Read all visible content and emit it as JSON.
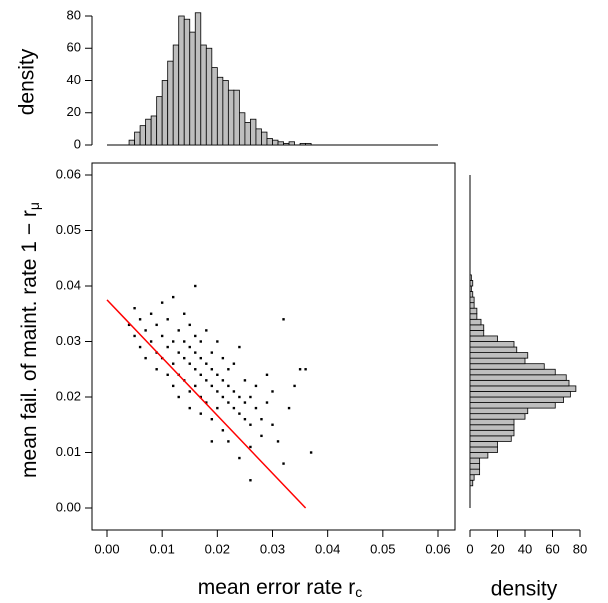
{
  "chart_data": [
    {
      "type": "scatter",
      "x_label": "mean error rate r",
      "x_label_sub": "c",
      "y_label": "mean fail. of maint. rate 1 − r",
      "y_label_sub": "μ",
      "xlim": [
        0,
        0.06
      ],
      "ylim": [
        0,
        0.06
      ],
      "xticks": [
        {
          "value": 0,
          "label": "0.00"
        },
        {
          "value": 0.01,
          "label": "0.01"
        },
        {
          "value": 0.02,
          "label": "0.02"
        },
        {
          "value": 0.03,
          "label": "0.03"
        },
        {
          "value": 0.04,
          "label": "0.04"
        },
        {
          "value": 0.05,
          "label": "0.05"
        },
        {
          "value": 0.06,
          "label": "0.06"
        }
      ],
      "yticks": [
        {
          "value": 0,
          "label": "0.00"
        },
        {
          "value": 0.01,
          "label": "0.01"
        },
        {
          "value": 0.02,
          "label": "0.02"
        },
        {
          "value": 0.03,
          "label": "0.03"
        },
        {
          "value": 0.04,
          "label": "0.04"
        },
        {
          "value": 0.05,
          "label": "0.05"
        },
        {
          "value": 0.06,
          "label": "0.06"
        }
      ],
      "color": "#000000",
      "x": [
        0.004,
        0.005,
        0.005,
        0.006,
        0.006,
        0.007,
        0.007,
        0.008,
        0.008,
        0.009,
        0.009,
        0.009,
        0.01,
        0.01,
        0.01,
        0.011,
        0.011,
        0.011,
        0.012,
        0.012,
        0.012,
        0.012,
        0.013,
        0.013,
        0.013,
        0.013,
        0.014,
        0.014,
        0.014,
        0.014,
        0.015,
        0.015,
        0.015,
        0.015,
        0.015,
        0.016,
        0.016,
        0.016,
        0.016,
        0.016,
        0.017,
        0.017,
        0.017,
        0.017,
        0.017,
        0.018,
        0.018,
        0.018,
        0.018,
        0.019,
        0.019,
        0.019,
        0.019,
        0.02,
        0.02,
        0.02,
        0.02,
        0.021,
        0.021,
        0.021,
        0.021,
        0.022,
        0.022,
        0.022,
        0.022,
        0.023,
        0.023,
        0.023,
        0.024,
        0.024,
        0.024,
        0.025,
        0.025,
        0.025,
        0.026,
        0.026,
        0.026,
        0.027,
        0.027,
        0.028,
        0.028,
        0.029,
        0.029,
        0.03,
        0.03,
        0.031,
        0.032,
        0.032,
        0.033,
        0.034,
        0.035,
        0.036,
        0.037,
        0.026,
        0.024,
        0.019
      ],
      "y": [
        0.033,
        0.031,
        0.036,
        0.029,
        0.034,
        0.032,
        0.027,
        0.035,
        0.03,
        0.028,
        0.033,
        0.025,
        0.031,
        0.027,
        0.037,
        0.029,
        0.024,
        0.034,
        0.03,
        0.026,
        0.022,
        0.038,
        0.028,
        0.032,
        0.024,
        0.02,
        0.027,
        0.03,
        0.023,
        0.035,
        0.026,
        0.029,
        0.021,
        0.033,
        0.018,
        0.025,
        0.028,
        0.022,
        0.031,
        0.04,
        0.024,
        0.027,
        0.02,
        0.03,
        0.017,
        0.023,
        0.026,
        0.019,
        0.032,
        0.022,
        0.025,
        0.028,
        0.016,
        0.021,
        0.024,
        0.018,
        0.03,
        0.02,
        0.023,
        0.014,
        0.027,
        0.019,
        0.022,
        0.025,
        0.012,
        0.018,
        0.021,
        0.026,
        0.017,
        0.02,
        0.029,
        0.016,
        0.019,
        0.023,
        0.015,
        0.02,
        0.011,
        0.018,
        0.022,
        0.016,
        0.013,
        0.019,
        0.024,
        0.015,
        0.021,
        0.012,
        0.034,
        0.008,
        0.018,
        0.022,
        0.025,
        0.025,
        0.01,
        0.005,
        0.009,
        0.012
      ],
      "fit_line": {
        "color": "#ff0000",
        "x": [
          0,
          0.036
        ],
        "y": [
          0.0375,
          0
        ]
      }
    },
    {
      "type": "histogram",
      "y_label": "density",
      "color": "#bebebe",
      "bins": [
        0.004,
        0.005,
        0.006,
        0.007,
        0.008,
        0.009,
        0.01,
        0.011,
        0.012,
        0.013,
        0.014,
        0.015,
        0.016,
        0.017,
        0.018,
        0.019,
        0.02,
        0.021,
        0.022,
        0.023,
        0.024,
        0.025,
        0.026,
        0.027,
        0.028,
        0.029,
        0.03,
        0.031,
        0.032,
        0.033,
        0.034,
        0.035,
        0.036,
        0.037
      ],
      "counts": [
        3,
        8,
        12,
        16,
        18,
        30,
        40,
        52,
        62,
        80,
        78,
        70,
        82,
        62,
        60,
        48,
        42,
        40,
        34,
        34,
        20,
        14,
        16,
        10,
        8,
        4,
        3,
        2,
        1,
        2,
        0,
        1,
        1
      ],
      "xlim": [
        0,
        0.06
      ],
      "ylim": [
        0,
        80
      ],
      "yticks": [
        0,
        20,
        40,
        60,
        80
      ]
    },
    {
      "type": "histogram",
      "orientation": "horizontal",
      "x_label": "density",
      "color": "#bebebe",
      "bins": [
        0.004,
        0.005,
        0.006,
        0.007,
        0.008,
        0.009,
        0.01,
        0.011,
        0.012,
        0.013,
        0.014,
        0.015,
        0.016,
        0.017,
        0.018,
        0.019,
        0.02,
        0.021,
        0.022,
        0.023,
        0.024,
        0.025,
        0.026,
        0.027,
        0.028,
        0.029,
        0.03,
        0.031,
        0.032,
        0.033,
        0.034,
        0.035,
        0.036,
        0.037,
        0.038,
        0.039,
        0.04,
        0.041,
        0.042
      ],
      "counts": [
        2,
        3,
        7,
        7,
        7,
        13,
        20,
        20,
        30,
        32,
        32,
        32,
        40,
        42,
        62,
        68,
        73,
        77,
        72,
        70,
        62,
        54,
        40,
        42,
        34,
        32,
        20,
        10,
        10,
        8,
        5,
        5,
        3,
        3,
        2,
        1,
        2,
        1
      ],
      "ylim": [
        0,
        0.06
      ],
      "xlim": [
        0,
        80
      ],
      "xticks": [
        0,
        20,
        40,
        60,
        80
      ]
    }
  ]
}
